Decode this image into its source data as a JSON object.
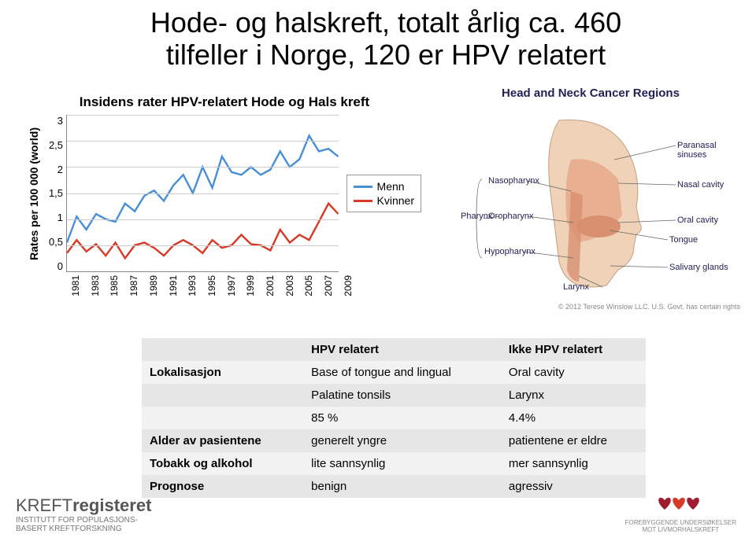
{
  "title_line1": "Hode- og halskreft, totalt årlig ca. 460",
  "title_line2": "tilfeller i Norge, 120 er HPV relatert",
  "chart": {
    "title": "Insidens rater HPV-relatert Hode og Hals kreft",
    "ylabel": "Rates per 100 000 (world)",
    "type": "line",
    "ylim": [
      0,
      3
    ],
    "ytick_step": 0.5,
    "yticks": [
      "3",
      "2,5",
      "2",
      "1,5",
      "1",
      "0,5",
      "0"
    ],
    "xticks": [
      "1981",
      "1983",
      "1985",
      "1987",
      "1989",
      "1991",
      "1993",
      "1995",
      "1997",
      "1999",
      "2001",
      "2003",
      "2005",
      "2007",
      "2009"
    ],
    "series": [
      {
        "name": "Menn",
        "color": "#4a8fd6",
        "line_width": 2.5,
        "values": [
          0.55,
          1.05,
          0.8,
          1.1,
          1.0,
          0.95,
          1.3,
          1.15,
          1.45,
          1.55,
          1.35,
          1.65,
          1.85,
          1.5,
          2.0,
          1.6,
          2.2,
          1.9,
          1.85,
          2.0,
          1.85,
          1.95,
          2.3,
          2.0,
          2.15,
          2.6,
          2.3,
          2.35,
          2.2
        ]
      },
      {
        "name": "Kvinner",
        "color": "#d63b2a",
        "line_width": 2.5,
        "values": [
          0.35,
          0.6,
          0.38,
          0.52,
          0.3,
          0.55,
          0.25,
          0.5,
          0.55,
          0.45,
          0.3,
          0.5,
          0.6,
          0.5,
          0.35,
          0.6,
          0.45,
          0.5,
          0.7,
          0.52,
          0.5,
          0.4,
          0.8,
          0.55,
          0.7,
          0.6,
          0.95,
          1.3,
          1.1
        ]
      }
    ],
    "grid_color": "#cccccc",
    "axis_color": "#888888",
    "background_color": "#ffffff"
  },
  "anatomy": {
    "title": "Head and Neck Cancer Regions",
    "labels": [
      "Paranasal sinuses",
      "Nasal cavity",
      "Oral cavity",
      "Salivary glands",
      "Nasopharynx",
      "Oropharynx",
      "Hypopharynx",
      "Pharynx",
      "Tongue",
      "Larynx"
    ],
    "credit": "© 2012 Terese Winslow LLC. U.S. Govt. has certain rights",
    "skin_color": "#f0d2b8",
    "cavity_color": "#e8b090",
    "muscle_color": "#d89070",
    "label_color": "#223355",
    "leader_color": "#666666"
  },
  "table": {
    "columns": [
      "",
      "HPV relatert",
      "Ikke HPV relatert"
    ],
    "rows": [
      [
        "Lokalisasjon",
        "Base of tongue and lingual",
        "Oral cavity"
      ],
      [
        "",
        "Palatine tonsils",
        "Larynx"
      ],
      [
        "",
        "85 %",
        "4.4%"
      ],
      [
        "Alder av pasientene",
        "generelt yngre",
        "patientene er eldre"
      ],
      [
        "Tobakk og alkohol",
        "lite sannsynlig",
        "mer sannsynlig"
      ],
      [
        "Prognose",
        "benign",
        "agressiv"
      ]
    ],
    "header_bg": "#e6e6e6",
    "row_alt_bg": "#f2f2f2",
    "fontsize": 15
  },
  "logo_left": {
    "brand_light": "KREFT",
    "brand_bold": "registeret",
    "sub1": "INSTITUTT FOR POPULASJONS-",
    "sub2": "BASERT KREFTFORSKNING"
  },
  "logo_right": {
    "line1": "FOREBYGGENDE UNDERSØKELSER",
    "line2": "MOT LIVMORHALSKREFT",
    "colors": [
      "#9d1c2e",
      "#d63b2a",
      "#9d1c2e"
    ]
  }
}
